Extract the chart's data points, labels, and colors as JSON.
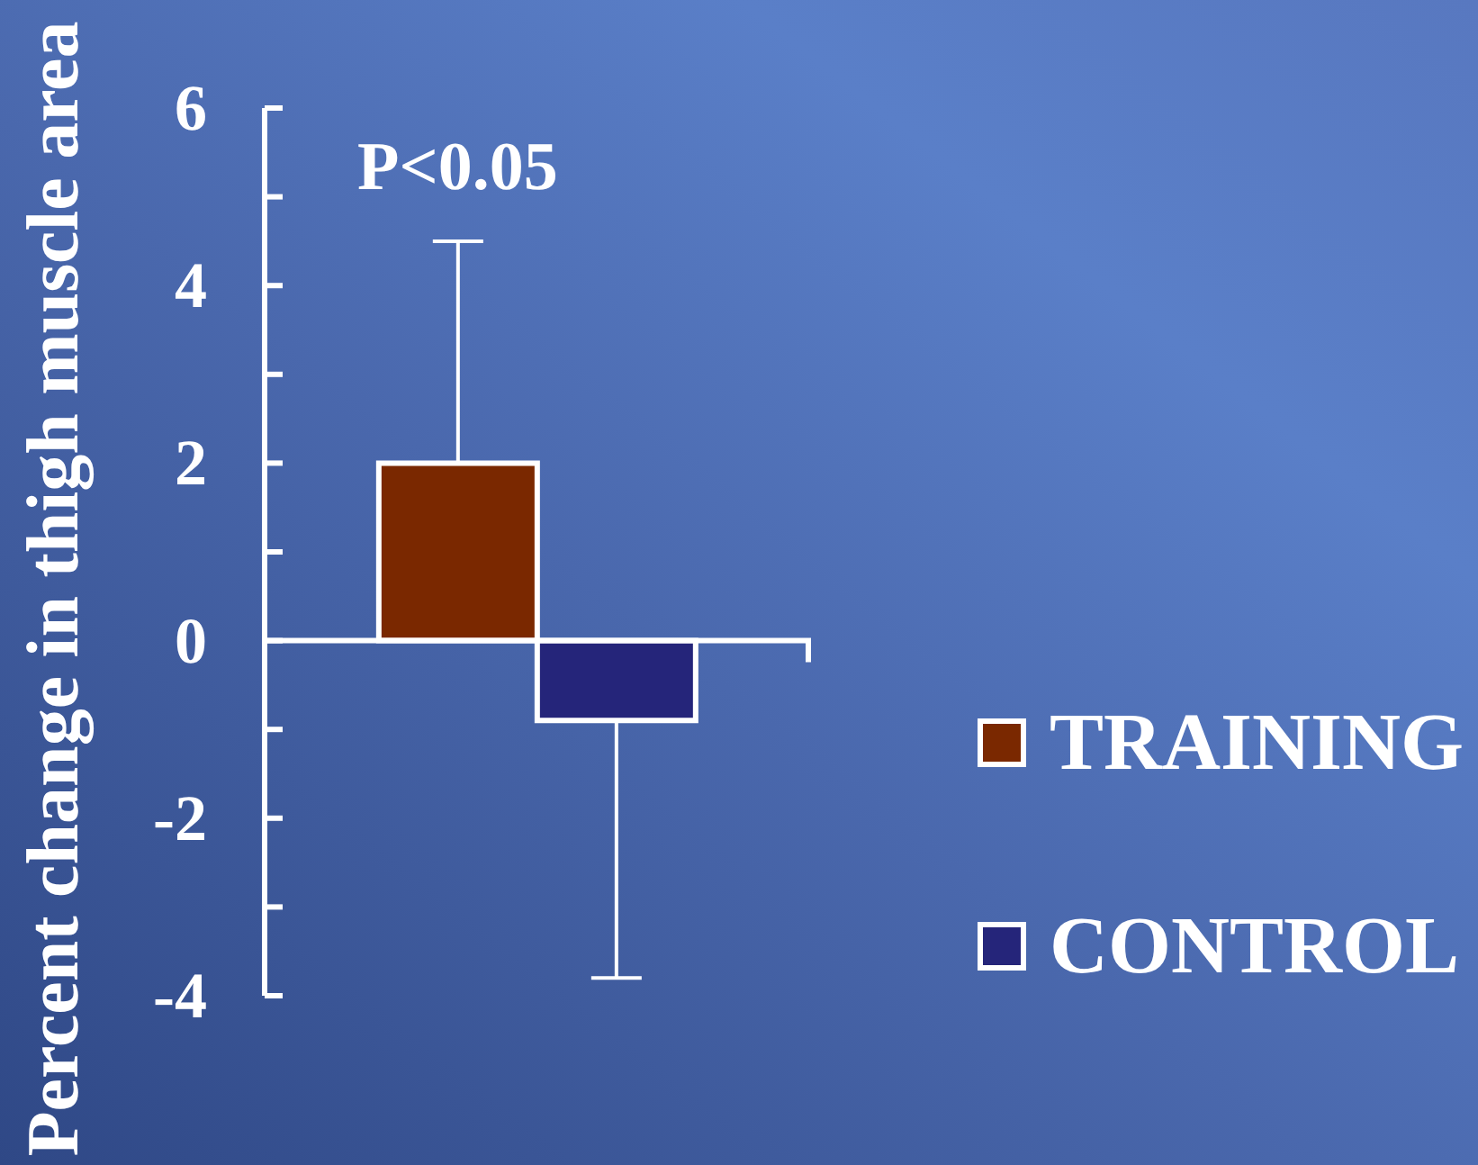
{
  "chart_data": {
    "type": "bar",
    "ylabel": "Percent change in thigh muscle area",
    "categories": [
      null
    ],
    "series": [
      {
        "name": "TRAINING",
        "color": "#7a2800",
        "values": [
          2.0
        ],
        "errors": [
          [
            2.0,
            4.5
          ]
        ]
      },
      {
        "name": "CONTROL",
        "color": "#25257a",
        "values": [
          -0.9
        ],
        "errors": [
          [
            -3.8,
            -0.9
          ]
        ]
      }
    ],
    "ylim": [
      -4,
      6
    ],
    "yticks": [
      -4,
      {
        "value": -3,
        "label": null
      },
      -2,
      {
        "value": -1,
        "label": null
      },
      0,
      {
        "value": 1,
        "label": null
      },
      2,
      {
        "value": 3,
        "label": null
      },
      4,
      {
        "value": 5,
        "label": null
      },
      6
    ],
    "ref_lines": [
      {
        "axis": "y",
        "value": 0,
        "color": "#ffffff"
      }
    ],
    "tick_labels": "y",
    "grid": false,
    "legend": "right",
    "annotations": [
      "P<0.05"
    ]
  }
}
